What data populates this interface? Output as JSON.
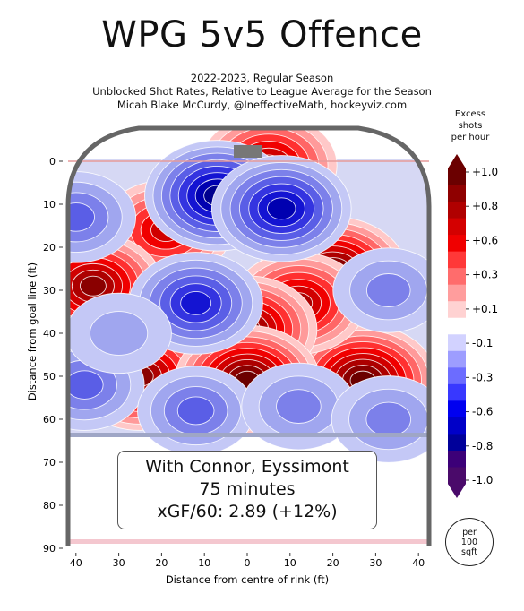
{
  "header": {
    "title": "WPG 5v5 Offence",
    "line1": "2022-2023, Regular Season",
    "line2": "Unblocked Shot Rates, Relative to League Average for the Season",
    "line3": "Micah Blake McCurdy, @IneffectiveMath, hockeyviz.com"
  },
  "inset": {
    "line1": "With Connor, Eyssimont",
    "line2": "75 minutes",
    "line3": "xGF/60: 2.89 (+12%)"
  },
  "colorbar": {
    "title_lines": [
      "Excess",
      "shots",
      "per hour"
    ],
    "tick_labels": [
      "+1.0",
      "+0.8",
      "+0.6",
      "+0.3",
      "+0.1",
      "-0.1",
      "-0.3",
      "-0.6",
      "-0.8",
      "-1.0"
    ],
    "colors": [
      "#6b0000",
      "#8f0000",
      "#b00000",
      "#d40000",
      "#f00000",
      "#ff3838",
      "#ff6c6c",
      "#ff9d9d",
      "#ffd2d2",
      "#ffffff",
      "#d2d2ff",
      "#9d9dff",
      "#6c6cff",
      "#3838ff",
      "#0000f0",
      "#0000c8",
      "#00009a",
      "#3c0078",
      "#4a0a6a"
    ]
  },
  "badge": {
    "lines": [
      "per",
      "100",
      "sqft"
    ]
  },
  "chart_data": {
    "type": "heatmap",
    "xlabel": "Distance from centre of rink (ft)",
    "ylabel": "Distance from goal line (ft)",
    "xlim": [
      -42,
      42
    ],
    "ylim": [
      0,
      90
    ],
    "x_ticks": [
      40,
      30,
      20,
      10,
      0,
      10,
      20,
      30,
      40
    ],
    "y_ticks": [
      0,
      10,
      20,
      30,
      40,
      50,
      60,
      70,
      80,
      90
    ],
    "value_range": [
      -1.0,
      1.0
    ],
    "hotspots": [
      {
        "x": 27,
        "y": 51,
        "value": 1.0
      },
      {
        "x": -25,
        "y": 50,
        "value": 0.9
      },
      {
        "x": -19,
        "y": 16,
        "value": 0.7
      },
      {
        "x": -36,
        "y": 29,
        "value": 0.85
      },
      {
        "x": 20,
        "y": 26,
        "value": 1.0
      },
      {
        "x": 12,
        "y": 33,
        "value": 0.75
      },
      {
        "x": 0,
        "y": 39,
        "value": 0.85
      },
      {
        "x": 0,
        "y": 51,
        "value": 0.95
      },
      {
        "x": 5,
        "y": 1,
        "value": 0.8
      },
      {
        "x": -7,
        "y": 8,
        "value": -0.95
      },
      {
        "x": 8,
        "y": 11,
        "value": -0.85
      },
      {
        "x": -12,
        "y": 33,
        "value": -0.75
      },
      {
        "x": -40,
        "y": 13,
        "value": -0.5
      },
      {
        "x": -38,
        "y": 52,
        "value": -0.5
      },
      {
        "x": 33,
        "y": 30,
        "value": -0.35
      },
      {
        "x": -12,
        "y": 58,
        "value": -0.45
      },
      {
        "x": 12,
        "y": 57,
        "value": -0.4
      },
      {
        "x": 33,
        "y": 60,
        "value": -0.4
      },
      {
        "x": -30,
        "y": 40,
        "value": -0.25
      }
    ]
  }
}
